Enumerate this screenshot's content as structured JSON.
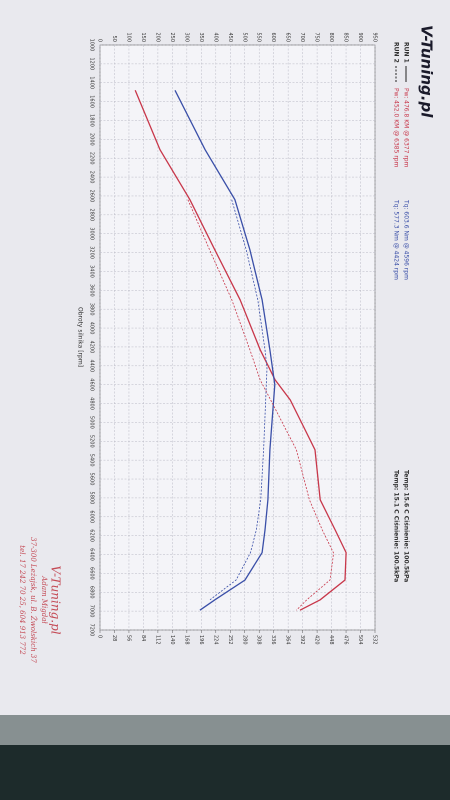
{
  "chart_data": {
    "type": "line",
    "logo": "V-Tuning.pl",
    "xlabel": "Obroty silnika [rpm]",
    "xlim": [
      1000,
      7200
    ],
    "xticks": [
      1000,
      1200,
      1400,
      1600,
      1800,
      2000,
      2200,
      2400,
      2600,
      2800,
      3000,
      3200,
      3400,
      3600,
      3800,
      4000,
      4200,
      4400,
      4600,
      4800,
      5000,
      5200,
      5400,
      5600,
      5800,
      6000,
      6200,
      6400,
      6600,
      6800,
      7000,
      7200
    ],
    "ylim": [
      0,
      950
    ],
    "yticks": [
      0,
      50,
      100,
      150,
      200,
      250,
      300,
      350,
      400,
      450,
      500,
      550,
      600,
      650,
      700,
      750,
      800,
      850,
      900,
      950
    ],
    "y2lim": [
      0,
      532
    ],
    "y2ticks": [
      0,
      28,
      56,
      84,
      112,
      140,
      168,
      196,
      224,
      252,
      280,
      308,
      336,
      364,
      392,
      420,
      448,
      476,
      504,
      532
    ],
    "grid": true,
    "power_color": "#c8374a",
    "torque_color": "#3a4fa8",
    "runs": [
      {
        "name": "RUN 1",
        "dashed": false,
        "power_text": "Pw: 476.8 KM @ 6377 rpm",
        "torque_text": "Tq: 603.6 Nm @ 4596 rpm",
        "conditions": "Temp: 15.6 C  Ciśnienie: 100.5kPa",
        "power": {
          "x": [
            1480,
            2110,
            2640,
            3170,
            3700,
            4230,
            4550,
            4760,
            5080,
            5290,
            5820,
            6140,
            6380,
            6670,
            6880,
            6990
          ],
          "values": [
            68,
            116,
            174,
            222,
            271,
            310,
            339,
            368,
            397,
            416,
            426,
            455,
            476,
            474,
            426,
            387
          ]
        },
        "torque": {
          "x": [
            1480,
            2110,
            2640,
            3170,
            3700,
            4230,
            4600,
            5290,
            5820,
            6140,
            6380,
            6670,
            6880,
            6990
          ],
          "values": [
            259,
            363,
            466,
            518,
            560,
            587,
            604,
            587,
            580,
            570,
            560,
            501,
            397,
            345
          ]
        }
      },
      {
        "name": "RUN 2",
        "dashed": true,
        "power_text": "Pw: 452.0 KM @ 6385 rpm",
        "torque_text": "Tq: 577.3 Nm @ 4424 rpm",
        "conditions": "Temp: 15.1 C  Ciśnienie: 100.5kPa",
        "power": {
          "x": [
            2640,
            3170,
            3700,
            4230,
            4550,
            4760,
            5080,
            5290,
            5820,
            6140,
            6385,
            6670,
            6880,
            6990
          ],
          "values": [
            170,
            212,
            255,
            290,
            310,
            330,
            360,
            380,
            405,
            430,
            452,
            445,
            400,
            380
          ]
        },
        "torque": {
          "x": [
            2640,
            3170,
            3700,
            4230,
            4424,
            5290,
            5820,
            6140,
            6380,
            6670,
            6880
          ],
          "values": [
            455,
            505,
            545,
            570,
            577,
            565,
            555,
            540,
            520,
            470,
            380
          ]
        }
      }
    ],
    "stamp": [
      "V-Tuning.pl",
      "Adam Migdał",
      "37-300 Leżajsk, ul. B. Żwolskich 37",
      "tel. 17 242 70 25, 604 913 772"
    ]
  }
}
